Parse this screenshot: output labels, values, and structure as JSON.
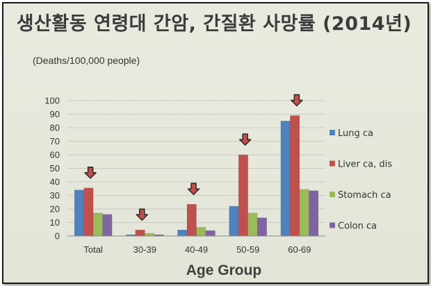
{
  "chart_data": {
    "type": "bar",
    "title": "생산활동 연령대 간암, 간질환 사망률 (2014년)",
    "unit_label": "(Deaths/100,000 people)",
    "xlabel": "Age Group",
    "ylabel": "",
    "ylim": [
      0,
      100
    ],
    "yticks": [
      0,
      10,
      20,
      30,
      40,
      50,
      60,
      70,
      80,
      90,
      100
    ],
    "grid": true,
    "legend_position": "right",
    "categories": [
      "Total",
      "30-39",
      "40-49",
      "50-59",
      "60-69"
    ],
    "series": [
      {
        "name": "Lung ca",
        "color": "#4f81bd",
        "values": [
          34,
          1,
          4.5,
          22,
          85
        ]
      },
      {
        "name": "Liver ca, dis",
        "color": "#c0504d",
        "values": [
          35.5,
          4.5,
          23.5,
          60,
          89
        ]
      },
      {
        "name": "Stomach ca",
        "color": "#9bbb59",
        "values": [
          17,
          2,
          6.5,
          17,
          34.5
        ]
      },
      {
        "name": "Colon ca",
        "color": "#8064a2",
        "values": [
          16,
          1,
          4,
          13.5,
          33.5
        ]
      }
    ],
    "annotations": {
      "arrow_icon": "down-arrow-icon",
      "arrow_color": "#c0504d",
      "arrow_categories": [
        "Total",
        "30-39",
        "40-49",
        "50-59",
        "60-69"
      ]
    }
  }
}
